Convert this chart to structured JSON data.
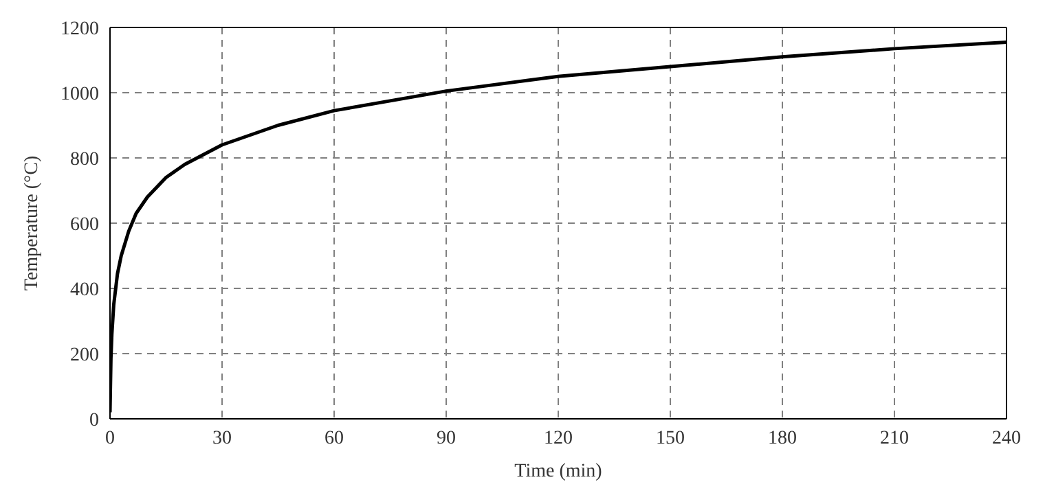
{
  "chart_data": {
    "type": "line",
    "xlabel": "Time (min)",
    "ylabel": "Temperature (°C)",
    "x": [
      0,
      0.25,
      0.5,
      1,
      2,
      3,
      5,
      7,
      10,
      15,
      20,
      30,
      45,
      60,
      90,
      120,
      150,
      180,
      210,
      240
    ],
    "series": [
      {
        "color": "#000000",
        "values": [
          20,
          185,
          260,
          350,
          445,
          500,
          575,
          630,
          680,
          740,
          780,
          840,
          900,
          945,
          1005,
          1050,
          1080,
          1110,
          1135,
          1155
        ]
      }
    ],
    "xlim": [
      0,
      240
    ],
    "xticks": [
      0,
      30,
      60,
      90,
      120,
      150,
      180,
      210,
      240
    ],
    "ylim": [
      0,
      1200
    ],
    "yticks": [
      0,
      200,
      400,
      600,
      800,
      1000,
      1200
    ],
    "grid": true,
    "marker": "none",
    "line_style": "solid"
  }
}
